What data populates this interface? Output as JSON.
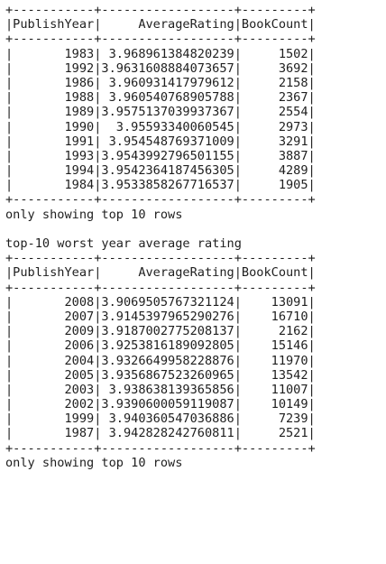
{
  "lines": [
    "+-----------+------------------+---------+",
    "|PublishYear|     AverageRating|BookCount|",
    "+-----------+------------------+---------+",
    "|       1983| 3.968961384820239|     1502|",
    "|       1992|3.9631608884073657|     3692|",
    "|       1986| 3.960931417979612|     2158|",
    "|       1988| 3.960540768905788|     2367|",
    "|       1989|3.9575137039937367|     2554|",
    "|       1990|  3.95593340060545|     2973|",
    "|       1991| 3.954548769371009|     3291|",
    "|       1993|3.9543992796501155|     3887|",
    "|       1994|3.9542364187456305|     4289|",
    "|       1984|3.9533858267716537|     1905|",
    "+-----------+------------------+---------+",
    "only showing top 10 rows",
    "",
    "top-10 worst year average rating",
    "+-----------+------------------+---------+",
    "|PublishYear|     AverageRating|BookCount|",
    "+-----------+------------------+---------+",
    "|       2008|3.9069505767321124|    13091|",
    "|       2007|3.9145397965290276|    16710|",
    "|       2009|3.9187002775208137|     2162|",
    "|       2006|3.9253816189092805|    15146|",
    "|       2004|3.9326649958228876|    11970|",
    "|       2005|3.9356867523260965|    13542|",
    "|       2003| 3.938638139365856|    11007|",
    "|       2002|3.9390600059119087|    10149|",
    "|       1999| 3.940360547036886|     7239|",
    "|       1987| 3.942828242760811|     2521|",
    "+-----------+------------------+---------+",
    "only showing top 10 rows"
  ]
}
